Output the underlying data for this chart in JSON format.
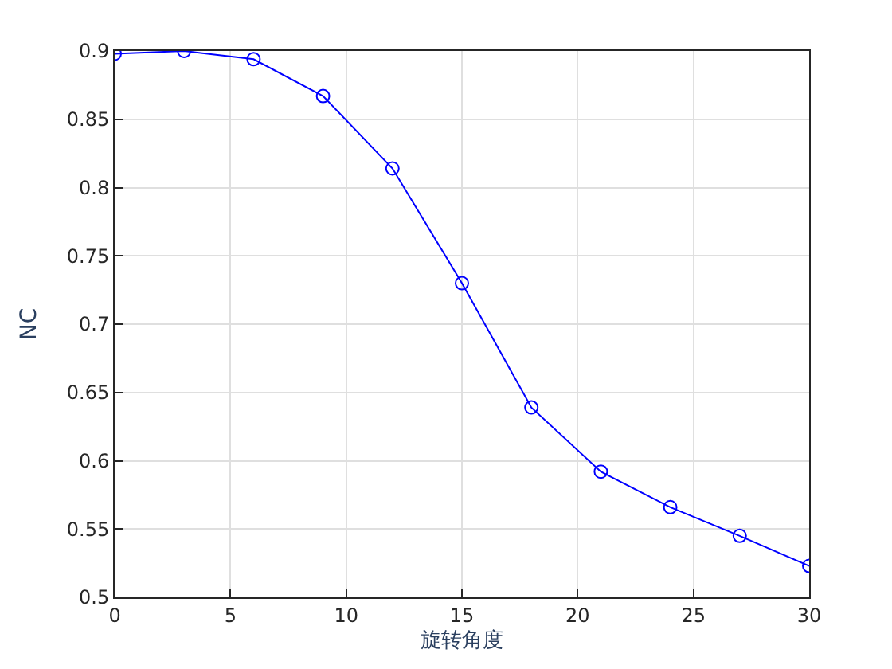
{
  "chart_data": {
    "type": "line",
    "xlabel": "旋转角度",
    "ylabel": "NC",
    "x": [
      0,
      3,
      6,
      9,
      12,
      15,
      18,
      21,
      24,
      27,
      30
    ],
    "series": [
      {
        "color": "#0000ff",
        "values": [
          0.898,
          0.9,
          0.894,
          0.867,
          0.814,
          0.73,
          0.639,
          0.592,
          0.566,
          0.545,
          0.523
        ]
      }
    ],
    "xlim": [
      0,
      30
    ],
    "xticks": [
      0,
      5,
      10,
      15,
      20,
      25,
      30
    ],
    "ylim": [
      0.5,
      0.9
    ],
    "yticks": [
      0.5,
      0.55,
      0.6,
      0.65,
      0.7,
      0.75,
      0.8,
      0.85,
      0.9
    ],
    "grid": true,
    "marker": "circle",
    "line_style": "solid"
  }
}
